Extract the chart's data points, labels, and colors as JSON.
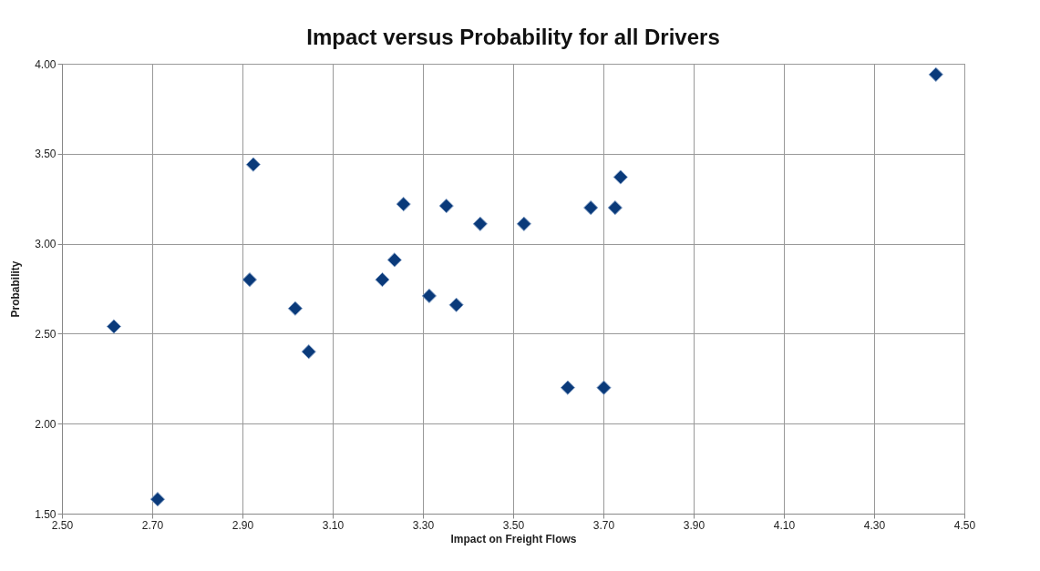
{
  "chart_data": {
    "type": "scatter",
    "title": "Impact versus Probability for all Drivers",
    "xlabel": "Impact on Freight Flows",
    "ylabel": "Probability",
    "x": [
      2.615,
      2.712,
      2.924,
      2.916,
      3.017,
      3.047,
      3.21,
      3.237,
      3.257,
      3.314,
      3.352,
      3.374,
      3.427,
      3.524,
      3.621,
      3.672,
      3.701,
      3.726,
      3.738,
      4.437
    ],
    "series": [
      {
        "color": "#0a3a7a",
        "values": [
          2.54,
          1.58,
          3.44,
          2.8,
          2.64,
          2.4,
          2.8,
          2.91,
          3.22,
          2.71,
          3.21,
          2.66,
          3.11,
          3.11,
          2.2,
          3.2,
          2.2,
          3.2,
          3.37,
          3.94
        ]
      }
    ],
    "xlim": [
      2.5,
      4.5
    ],
    "xticks": [
      {
        "value": 2.5,
        "label": "2.50"
      },
      {
        "value": 2.7,
        "label": "2.70"
      },
      {
        "value": 2.9,
        "label": "2.90"
      },
      {
        "value": 3.1,
        "label": "3.10"
      },
      {
        "value": 3.3,
        "label": "3.30"
      },
      {
        "value": 3.5,
        "label": "3.50"
      },
      {
        "value": 3.7,
        "label": "3.70"
      },
      {
        "value": 3.9,
        "label": "3.90"
      },
      {
        "value": 4.1,
        "label": "4.10"
      },
      {
        "value": 4.3,
        "label": "4.30"
      },
      {
        "value": 4.5,
        "label": "4.50"
      }
    ],
    "ylim": [
      1.5,
      4
    ],
    "yticks": [
      {
        "value": 1.5,
        "label": "1.50"
      },
      {
        "value": 2,
        "label": "2.00"
      },
      {
        "value": 2.5,
        "label": "2.50"
      },
      {
        "value": 3,
        "label": "3.00"
      },
      {
        "value": 3.5,
        "label": "3.50"
      },
      {
        "value": 4,
        "label": "4.00"
      }
    ],
    "grid": true,
    "marker": "diamond"
  }
}
